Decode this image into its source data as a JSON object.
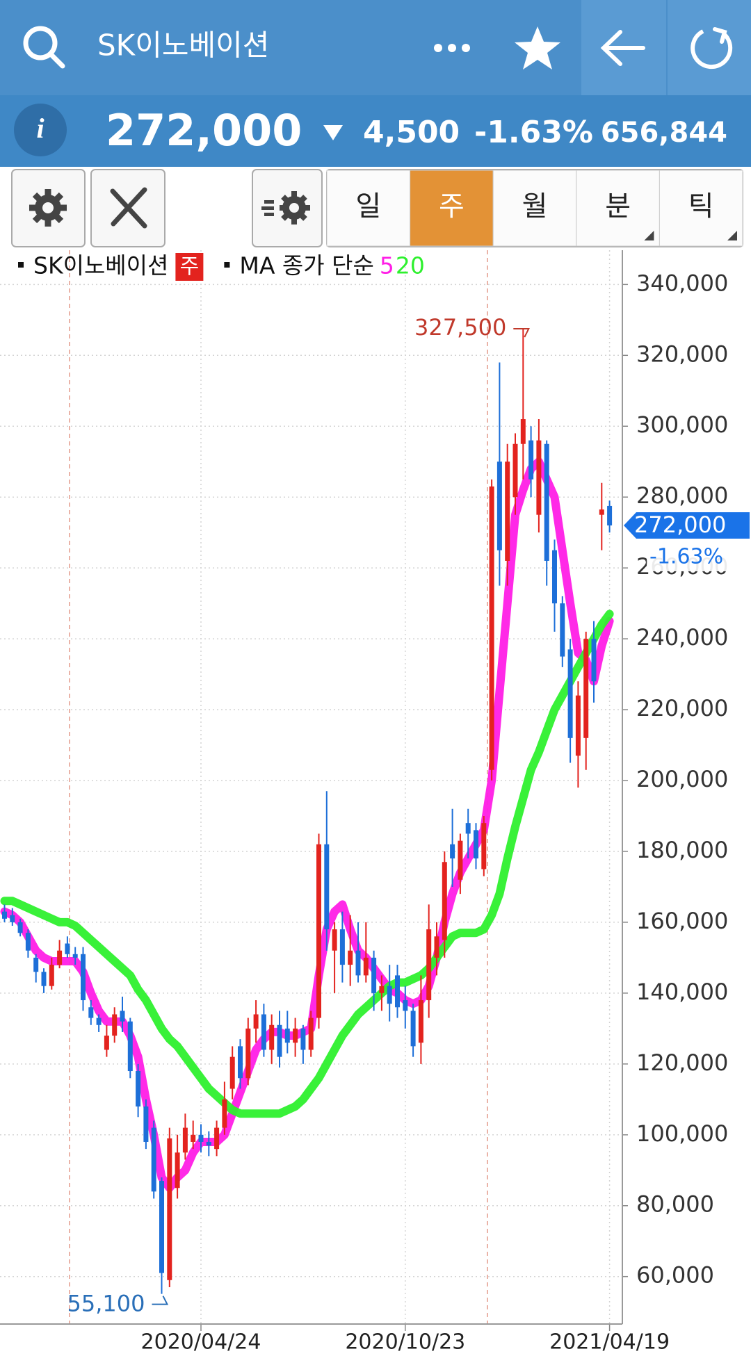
{
  "header": {
    "title": "SK이노베이션"
  },
  "quote": {
    "price": "272,000",
    "change": "4,500",
    "change_rate": "-1.63%",
    "volume": "656,844"
  },
  "tabs": [
    "일",
    "주",
    "월",
    "분",
    "틱"
  ],
  "active_tab": 1,
  "chart_data": {
    "type": "candlestick",
    "legend": {
      "name": "SK이노베이션",
      "period": "주",
      "ma_label": "MA 종가 단순"
    },
    "categories": [
      null,
      null,
      null,
      null,
      null,
      null,
      null,
      null,
      null,
      null,
      null,
      null,
      null,
      null,
      null,
      null,
      null,
      null,
      null,
      null,
      null,
      null,
      null,
      null,
      null,
      "2020/04/24",
      null,
      null,
      null,
      null,
      null,
      null,
      null,
      null,
      null,
      null,
      null,
      null,
      null,
      null,
      null,
      null,
      null,
      null,
      null,
      null,
      null,
      null,
      null,
      null,
      null,
      "2020/10/23",
      null,
      null,
      null,
      null,
      null,
      null,
      null,
      null,
      null,
      null,
      null,
      null,
      null,
      null,
      null,
      null,
      null,
      null,
      null,
      null,
      null,
      null,
      null,
      null,
      null,
      "2021/04/19"
    ],
    "open": [
      163000,
      162000,
      160000,
      157000,
      150000,
      146000,
      142000,
      148000,
      154000,
      151000,
      151000,
      136000,
      133000,
      124000,
      128000,
      135000,
      132000,
      118000,
      108000,
      102000,
      87000,
      59000,
      85000,
      95000,
      98000,
      100000,
      98000,
      96000,
      102000,
      113000,
      125000,
      116000,
      130000,
      134000,
      124000,
      131000,
      130000,
      126000,
      130000,
      124000,
      133000,
      182000,
      152000,
      158000,
      148000,
      152000,
      145000,
      150000,
      140000,
      142000,
      145000,
      138000,
      135000,
      126000,
      138000,
      150000,
      155000,
      182000,
      172000,
      188000,
      186000,
      175000,
      203000,
      290000,
      262000,
      280000,
      295000,
      296000,
      275000,
      295000,
      265000,
      250000,
      237000,
      207000,
      212000,
      240000,
      275000,
      277500
    ],
    "high": [
      165000,
      164000,
      161000,
      158000,
      151000,
      147000,
      150000,
      155000,
      156000,
      153000,
      153000,
      138000,
      134000,
      131000,
      136000,
      139000,
      133000,
      120000,
      110000,
      104000,
      88000,
      102000,
      100000,
      106000,
      104000,
      103000,
      101000,
      104000,
      115000,
      125000,
      127000,
      133000,
      138000,
      137000,
      134000,
      135000,
      135000,
      133000,
      131000,
      135000,
      185000,
      197000,
      160000,
      163000,
      162000,
      160000,
      160000,
      152000,
      145000,
      148000,
      148000,
      142000,
      137000,
      145000,
      165000,
      160000,
      180000,
      192000,
      185000,
      192000,
      188000,
      190000,
      285000,
      318000,
      295000,
      298000,
      327500,
      300000,
      302000,
      296000,
      268000,
      252000,
      240000,
      228000,
      242000,
      245000,
      284000,
      279000
    ],
    "low": [
      160000,
      159000,
      156000,
      150000,
      143000,
      140000,
      141000,
      147000,
      150000,
      148000,
      135000,
      131000,
      129000,
      122000,
      126000,
      129000,
      116000,
      105000,
      96000,
      82000,
      55100,
      57000,
      82000,
      93000,
      96000,
      95000,
      94000,
      94000,
      100000,
      110000,
      113000,
      114000,
      126000,
      122000,
      120000,
      119000,
      123000,
      122000,
      120000,
      122000,
      130000,
      152000,
      140000,
      143000,
      142000,
      143000,
      143000,
      135000,
      135000,
      132000,
      133000,
      130000,
      122000,
      120000,
      133000,
      145000,
      150000,
      170000,
      168000,
      178000,
      175000,
      173000,
      200000,
      255000,
      255000,
      275000,
      285000,
      280000,
      270000,
      255000,
      242000,
      232000,
      205000,
      198000,
      203000,
      222000,
      265000,
      270000
    ],
    "close": [
      161000,
      160000,
      157000,
      152000,
      146000,
      142000,
      148000,
      152000,
      151000,
      150000,
      138000,
      133000,
      131000,
      128000,
      134000,
      132000,
      118000,
      108000,
      98000,
      84000,
      61000,
      99000,
      95000,
      102000,
      100000,
      98000,
      97000,
      102000,
      110000,
      122000,
      116000,
      130000,
      134000,
      124000,
      131000,
      122000,
      126000,
      130000,
      124000,
      133000,
      182000,
      158000,
      158000,
      148000,
      152000,
      145000,
      150000,
      140000,
      142000,
      137000,
      136000,
      135000,
      125000,
      138000,
      158000,
      156000,
      177000,
      178000,
      183000,
      185000,
      178000,
      188000,
      283000,
      265000,
      290000,
      295000,
      302000,
      285000,
      296000,
      262000,
      250000,
      235000,
      212000,
      224000,
      240000,
      228000,
      276500,
      272000
    ],
    "up_color": "#e3231e",
    "down_color": "#1d6fd8",
    "ma": [
      {
        "name": "5",
        "color": "#ff1ee6",
        "values": [
          163000,
          162000,
          160000,
          156000,
          152000,
          150000,
          149000,
          149000,
          149000,
          149000,
          146000,
          140000,
          135000,
          132000,
          132000,
          132000,
          128000,
          122000,
          110000,
          100000,
          88000,
          85000,
          88000,
          90000,
          95000,
          98000,
          98000,
          98000,
          100000,
          106000,
          112000,
          118000,
          124000,
          127000,
          129000,
          129000,
          128000,
          128000,
          129000,
          130000,
          145000,
          158000,
          163000,
          165000,
          158000,
          152000,
          150000,
          147000,
          144000,
          141000,
          140000,
          138000,
          137000,
          138000,
          142000,
          150000,
          160000,
          168000,
          174000,
          178000,
          182000,
          186000,
          200000,
          225000,
          250000,
          275000,
          282000,
          288000,
          290000,
          285000,
          280000,
          265000,
          250000,
          236000,
          234000,
          228000,
          238000,
          245000
        ]
      },
      {
        "name": "20",
        "color": "#2ef02e",
        "values": [
          166000,
          166000,
          165000,
          164000,
          163000,
          162000,
          161000,
          160000,
          160000,
          159000,
          157000,
          155000,
          153000,
          151000,
          149000,
          147000,
          145000,
          141000,
          138000,
          134000,
          130000,
          127000,
          125000,
          122000,
          119000,
          116000,
          113000,
          111000,
          109000,
          107000,
          106000,
          106000,
          106000,
          106000,
          106000,
          106000,
          107000,
          108000,
          110000,
          113000,
          116000,
          120000,
          124000,
          128000,
          131000,
          134000,
          136000,
          138000,
          140000,
          142000,
          143000,
          143000,
          144000,
          145000,
          147000,
          150000,
          153000,
          156000,
          157000,
          157000,
          157000,
          158000,
          162000,
          168000,
          178000,
          187000,
          195000,
          203000,
          208000,
          214000,
          220000,
          224000,
          228000,
          232000,
          236000,
          240000,
          244000,
          247000
        ]
      }
    ],
    "high_label": "327,500",
    "low_label": "55,100",
    "last_label": "272,000",
    "change_label": "-1.63%",
    "ylim": [
      46600,
      348500
    ],
    "yticks": [
      {
        "value": 60000,
        "label": "60,000"
      },
      {
        "value": 80000,
        "label": "80,000"
      },
      {
        "value": 100000,
        "label": "100,000"
      },
      {
        "value": 120000,
        "label": "120,000"
      },
      {
        "value": 140000,
        "label": "140,000"
      },
      {
        "value": 160000,
        "label": "160,000"
      },
      {
        "value": 180000,
        "label": "180,000"
      },
      {
        "value": 200000,
        "label": "200,000"
      },
      {
        "value": 220000,
        "label": "220,000"
      },
      {
        "value": 240000,
        "label": "240,000"
      },
      {
        "value": 260000,
        "label": "260,000"
      },
      {
        "value": 280000,
        "label": "280,000"
      },
      {
        "value": 300000,
        "label": "300,000"
      },
      {
        "value": 320000,
        "label": "320,000"
      },
      {
        "value": 340000,
        "label": "340,000"
      }
    ],
    "grid": true
  }
}
